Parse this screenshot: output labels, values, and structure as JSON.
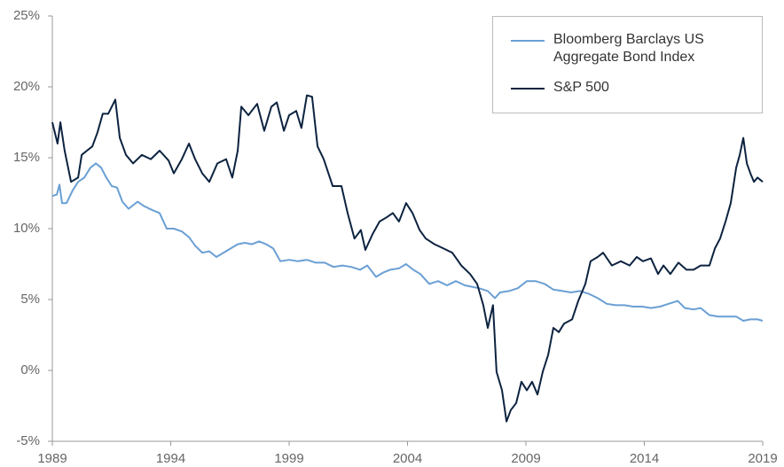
{
  "chart_data": {
    "type": "line",
    "xlim": [
      1989,
      2019
    ],
    "xticks": [
      1989,
      1994,
      1999,
      2004,
      2009,
      2014,
      2019
    ],
    "ylim": [
      -5,
      25
    ],
    "yticks": [
      {
        "value": -5,
        "label": "-5%"
      },
      {
        "value": 0,
        "label": "0%"
      },
      {
        "value": 5,
        "label": "5%"
      },
      {
        "value": 10,
        "label": "10%"
      },
      {
        "value": 15,
        "label": "15%"
      },
      {
        "value": 20,
        "label": "20%"
      },
      {
        "value": 25,
        "label": "25%"
      }
    ],
    "grid": false,
    "legend": "top-right",
    "series": [
      {
        "name": "Bloomberg Barclays US Aggregate Bond Index",
        "color": "#6a9fd4",
        "x": [
          1989.0,
          1989.19,
          1989.3,
          1989.41,
          1989.6,
          1989.86,
          1990.09,
          1990.35,
          1990.61,
          1990.84,
          1991.06,
          1991.28,
          1991.51,
          1991.73,
          1991.96,
          1992.22,
          1992.6,
          1992.86,
          1993.23,
          1993.53,
          1993.83,
          1994.13,
          1994.47,
          1994.77,
          1995.03,
          1995.33,
          1995.63,
          1995.93,
          1996.23,
          1996.53,
          1996.83,
          1997.13,
          1997.43,
          1997.73,
          1998.03,
          1998.33,
          1998.63,
          1999.0,
          1999.37,
          1999.75,
          2000.12,
          2000.5,
          2000.87,
          2001.25,
          2001.62,
          2002.0,
          2002.3,
          2002.67,
          2002.97,
          2003.27,
          2003.64,
          2003.94,
          2004.24,
          2004.54,
          2004.92,
          2005.29,
          2005.67,
          2006.04,
          2006.42,
          2006.72,
          2007.01,
          2007.39,
          2007.69,
          2007.91,
          2008.29,
          2008.66,
          2009.04,
          2009.41,
          2009.79,
          2010.16,
          2010.54,
          2010.91,
          2011.28,
          2011.66,
          2012.03,
          2012.41,
          2012.78,
          2013.16,
          2013.53,
          2013.91,
          2014.28,
          2014.66,
          2015.03,
          2015.41,
          2015.71,
          2016.08,
          2016.38,
          2016.75,
          2017.13,
          2017.5,
          2017.88,
          2018.18,
          2018.48,
          2018.78,
          2019.0
        ],
        "values": [
          12.3,
          12.4,
          13.1,
          11.8,
          11.8,
          12.7,
          13.3,
          13.6,
          14.3,
          14.6,
          14.3,
          13.6,
          13.0,
          12.9,
          11.9,
          11.4,
          11.9,
          11.6,
          11.3,
          11.1,
          10.0,
          10.0,
          9.8,
          9.4,
          8.8,
          8.3,
          8.4,
          8.0,
          8.3,
          8.6,
          8.9,
          9.0,
          8.9,
          9.1,
          8.9,
          8.6,
          7.7,
          7.8,
          7.7,
          7.8,
          7.6,
          7.6,
          7.3,
          7.4,
          7.3,
          7.1,
          7.4,
          6.6,
          6.9,
          7.1,
          7.2,
          7.5,
          7.1,
          6.8,
          6.1,
          6.3,
          6.0,
          6.3,
          6.0,
          5.9,
          5.8,
          5.6,
          5.1,
          5.5,
          5.6,
          5.8,
          6.3,
          6.3,
          6.1,
          5.7,
          5.6,
          5.5,
          5.6,
          5.4,
          5.1,
          4.7,
          4.6,
          4.6,
          4.5,
          4.5,
          4.4,
          4.5,
          4.7,
          4.9,
          4.4,
          4.3,
          4.4,
          3.9,
          3.8,
          3.8,
          3.8,
          3.5,
          3.6,
          3.6,
          3.5
        ]
      },
      {
        "name": "S&P 500",
        "color": "#0c2340",
        "x": [
          1989.0,
          1989.22,
          1989.34,
          1989.52,
          1989.79,
          1990.09,
          1990.24,
          1990.46,
          1990.69,
          1990.91,
          1991.13,
          1991.36,
          1991.66,
          1991.85,
          1992.11,
          1992.41,
          1992.78,
          1993.16,
          1993.53,
          1993.91,
          1994.13,
          1994.47,
          1994.77,
          1995.03,
          1995.33,
          1995.63,
          1995.97,
          1996.34,
          1996.6,
          1996.83,
          1996.98,
          1997.28,
          1997.65,
          1997.95,
          1998.25,
          1998.48,
          1998.78,
          1999.0,
          1999.3,
          1999.52,
          1999.75,
          1999.97,
          2000.2,
          2000.46,
          2000.84,
          2001.21,
          2001.47,
          2001.76,
          2002.03,
          2002.22,
          2002.52,
          2002.82,
          2003.12,
          2003.38,
          2003.64,
          2003.94,
          2004.21,
          2004.51,
          2004.77,
          2005.14,
          2005.52,
          2005.89,
          2006.27,
          2006.64,
          2006.94,
          2007.2,
          2007.39,
          2007.61,
          2007.76,
          2007.99,
          2008.18,
          2008.36,
          2008.59,
          2008.81,
          2009.04,
          2009.26,
          2009.49,
          2009.71,
          2009.94,
          2010.16,
          2010.39,
          2010.61,
          2010.95,
          2011.21,
          2011.51,
          2011.73,
          2012.03,
          2012.26,
          2012.63,
          2013.01,
          2013.38,
          2013.68,
          2013.94,
          2014.28,
          2014.58,
          2014.81,
          2015.1,
          2015.44,
          2015.78,
          2016.08,
          2016.38,
          2016.75,
          2016.98,
          2017.2,
          2017.43,
          2017.65,
          2017.88,
          2018.03,
          2018.18,
          2018.33,
          2018.48,
          2018.63,
          2018.78,
          2019.0
        ],
        "values": [
          17.5,
          16.0,
          17.5,
          15.5,
          13.3,
          13.6,
          15.2,
          15.5,
          15.8,
          16.8,
          18.1,
          18.1,
          19.1,
          16.4,
          15.2,
          14.6,
          15.2,
          14.9,
          15.5,
          14.8,
          13.9,
          14.9,
          16.0,
          14.9,
          13.9,
          13.3,
          14.6,
          14.9,
          13.6,
          15.5,
          18.6,
          18.0,
          18.8,
          16.9,
          18.6,
          18.9,
          16.9,
          18.0,
          18.3,
          17.1,
          19.4,
          19.3,
          15.8,
          14.9,
          13.0,
          13.0,
          11.1,
          9.3,
          9.9,
          8.5,
          9.6,
          10.5,
          10.8,
          11.1,
          10.5,
          11.8,
          11.1,
          9.9,
          9.3,
          8.9,
          8.6,
          8.3,
          7.4,
          6.8,
          6.1,
          4.6,
          3.0,
          4.6,
          -0.1,
          -1.4,
          -3.6,
          -2.8,
          -2.3,
          -0.8,
          -1.4,
          -0.8,
          -1.7,
          -0.1,
          1.1,
          3.0,
          2.7,
          3.3,
          3.6,
          4.9,
          6.1,
          7.7,
          8.0,
          8.3,
          7.4,
          7.7,
          7.4,
          8.0,
          7.7,
          7.9,
          6.8,
          7.4,
          6.8,
          7.6,
          7.1,
          7.1,
          7.4,
          7.4,
          8.6,
          9.3,
          10.5,
          11.8,
          14.3,
          15.2,
          16.4,
          14.6,
          13.9,
          13.3,
          13.6,
          13.3
        ]
      }
    ]
  }
}
